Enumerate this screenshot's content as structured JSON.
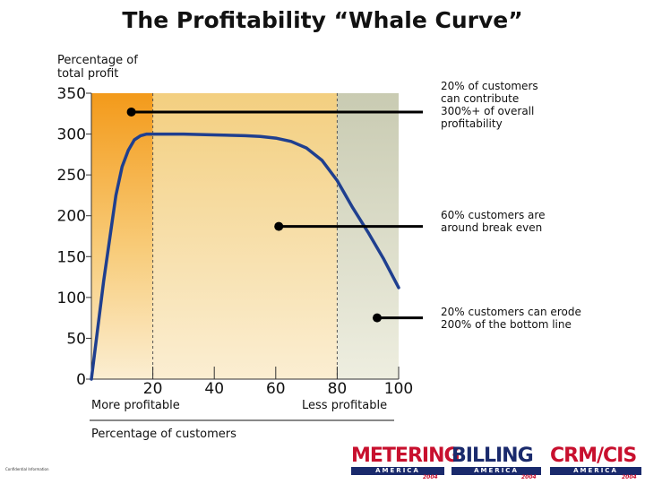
{
  "title": "The Profitability “Whale Curve”",
  "ylabel_line1": "Percentage of",
  "ylabel_line2": "total profit",
  "xlabel": "Percentage of customers",
  "x_left_label": "More profitable",
  "x_right_label": "Less profitable",
  "annotations": [
    {
      "lines": [
        "20% of customers",
        "can contribute",
        "300%+ of overall",
        "profitability"
      ],
      "point": {
        "x": 13,
        "y": 327
      }
    },
    {
      "lines": [
        "60% customers are",
        "around break even"
      ],
      "point": {
        "x": 61,
        "y": 187
      }
    },
    {
      "lines": [
        "20% customers can erode",
        "200% of the bottom line"
      ],
      "point": {
        "x": 93,
        "y": 75
      }
    }
  ],
  "footer": "Confidential Information",
  "logos": [
    {
      "word": "METERING",
      "band": "AMERICA",
      "year": "2004",
      "color": "#c8102e"
    },
    {
      "word": "BILLING",
      "band": "AMERICA",
      "year": "2004",
      "color": "#1a2a6c"
    },
    {
      "word": "CRM/CIS",
      "band": "AMERICA",
      "year": "2004",
      "color": "#c8102e"
    }
  ],
  "colors": {
    "curve": "#1f3f8f",
    "region_top": "#f39a1a",
    "region_mid": "#f5d38a",
    "region_right": "#d4d4bc"
  },
  "chart_data": {
    "type": "line",
    "xlim": [
      0,
      100
    ],
    "ylim": [
      0,
      350
    ],
    "x_ticks": [
      20,
      40,
      60,
      80,
      100
    ],
    "y_ticks": [
      0,
      50,
      100,
      150,
      200,
      250,
      300,
      350
    ],
    "region_boundaries": [
      20,
      80
    ],
    "series": [
      {
        "x": [
          0,
          4,
          8,
          10,
          12,
          14,
          16,
          18,
          20,
          30,
          40,
          50,
          55,
          60,
          65,
          70,
          75,
          80,
          85,
          90,
          95,
          100
        ],
        "y": [
          0,
          120,
          225,
          260,
          280,
          293,
          298,
          300,
          300,
          300,
          299,
          298,
          297,
          295,
          291,
          283,
          268,
          243,
          210,
          180,
          148,
          112
        ]
      }
    ]
  }
}
